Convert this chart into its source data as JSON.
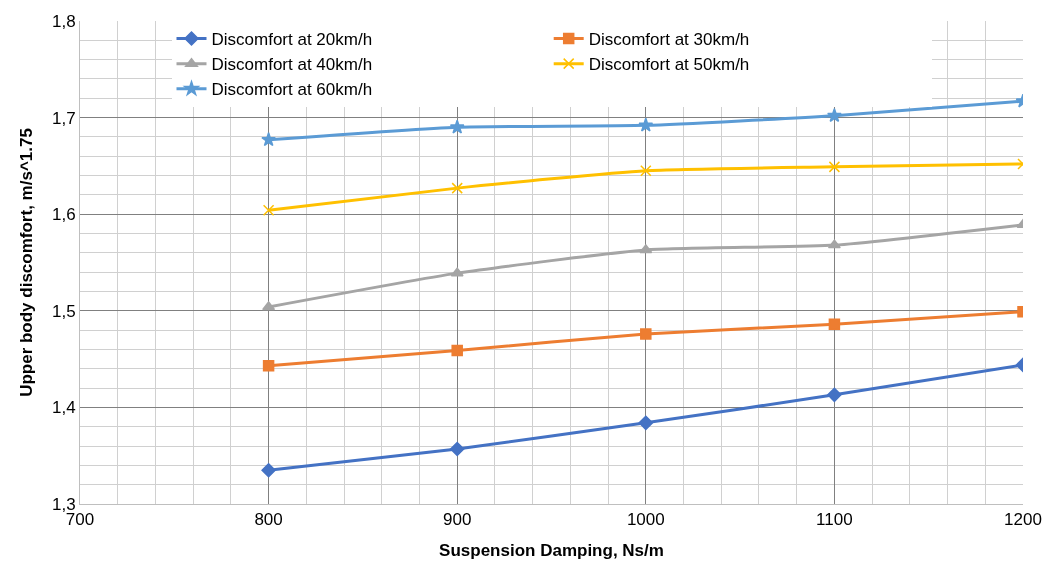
{
  "chart_data": {
    "type": "line",
    "xlabel": "Suspension Damping, Ns/m",
    "ylabel": "Upper body discomfort, m/s^1.75",
    "x": [
      800,
      900,
      1000,
      1100,
      1200
    ],
    "series": [
      {
        "name": "Discomfort at 20km/h",
        "color": "#4472c4",
        "marker": "diamond",
        "values": [
          1.335,
          1.357,
          1.384,
          1.413,
          1.444
        ]
      },
      {
        "name": "Discomfort at 30km/h",
        "color": "#ed7d31",
        "marker": "square",
        "values": [
          1.443,
          1.459,
          1.476,
          1.486,
          1.499
        ]
      },
      {
        "name": "Discomfort at 40km/h",
        "color": "#a5a5a5",
        "marker": "triangle",
        "values": [
          1.504,
          1.539,
          1.563,
          1.568,
          1.589
        ]
      },
      {
        "name": "Discomfort at 50km/h",
        "color": "#ffc000",
        "marker": "cross",
        "values": [
          1.604,
          1.627,
          1.645,
          1.649,
          1.652
        ]
      },
      {
        "name": "Discomfort at 60km/h",
        "color": "#5b9bd5",
        "marker": "star",
        "values": [
          1.677,
          1.69,
          1.692,
          1.702,
          1.717
        ]
      }
    ],
    "xlim": [
      700,
      1200
    ],
    "xticks": [
      700,
      800,
      900,
      1000,
      1100,
      1200
    ],
    "ylim": [
      1.3,
      1.8
    ],
    "yticks": [
      {
        "value": 1.3,
        "label": "1,3"
      },
      {
        "value": 1.4,
        "label": "1,4"
      },
      {
        "value": 1.5,
        "label": "1,5"
      },
      {
        "value": 1.6,
        "label": "1,6"
      },
      {
        "value": 1.7,
        "label": "1,7"
      },
      {
        "value": 1.8,
        "label": "1,8"
      }
    ],
    "grid": true,
    "legend": "top",
    "line_style": "solid"
  }
}
